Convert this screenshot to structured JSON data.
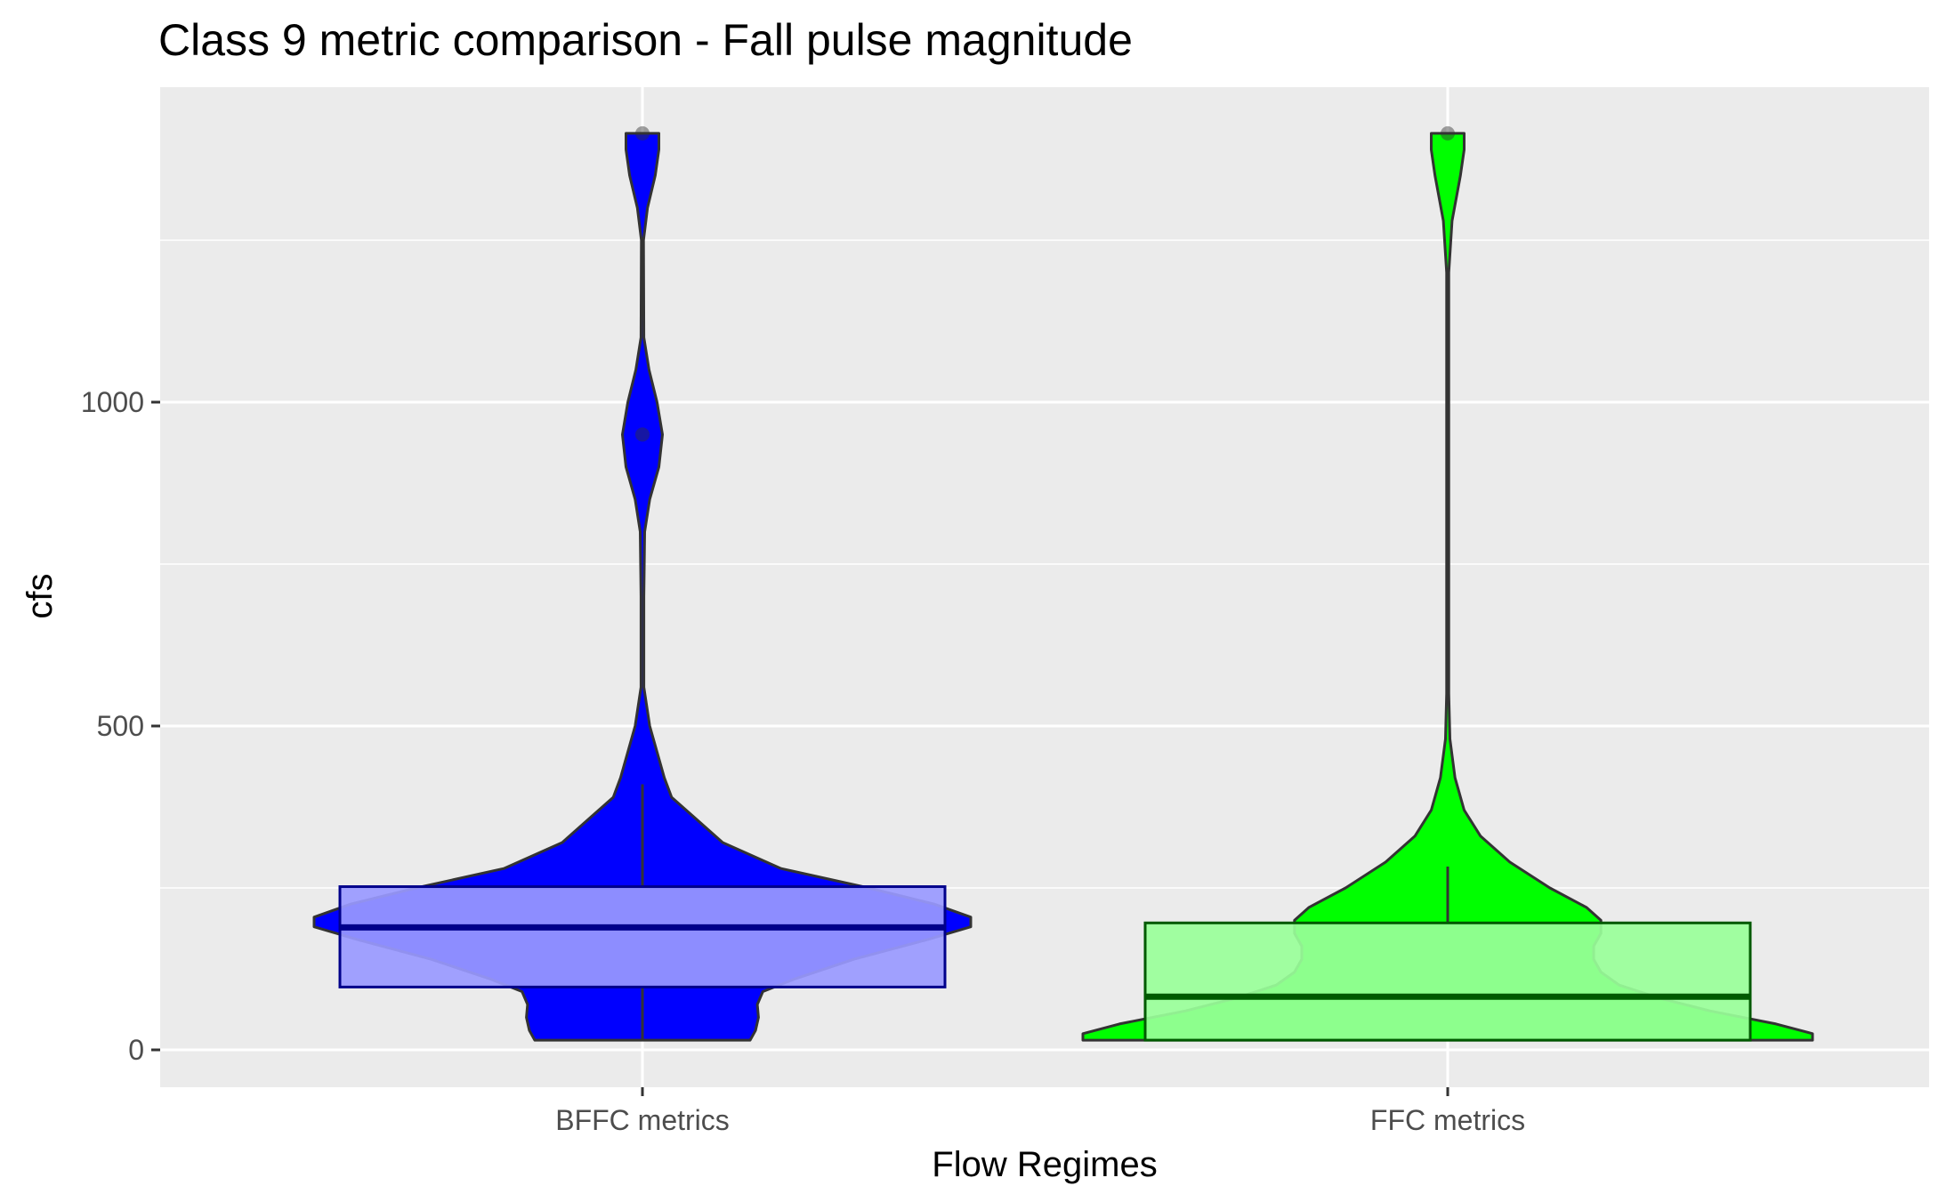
{
  "chart_data": {
    "type": "violin",
    "title": "Class 9 metric comparison - Fall pulse magnitude",
    "xlabel": "Flow Regimes",
    "ylabel": "cfs",
    "ylim": [
      -60,
      1480
    ],
    "yticks": [
      0,
      500,
      1000
    ],
    "grid": true,
    "legend": "none",
    "categories": [
      "BFFC metrics",
      "FFC metrics"
    ],
    "series": [
      {
        "category": "BFFC metrics",
        "fill_color": "#0000ff",
        "box_fill": "#9999ff",
        "box_border": "#00008b",
        "box": {
          "min": 15,
          "q1": 97,
          "median": 189,
          "q3": 252,
          "max": 410
        },
        "outliers": [
          950,
          1415
        ],
        "violin": [
          [
            15,
            0.295
          ],
          [
            30,
            0.31
          ],
          [
            50,
            0.318
          ],
          [
            70,
            0.315
          ],
          [
            90,
            0.33
          ],
          [
            110,
            0.42
          ],
          [
            140,
            0.58
          ],
          [
            170,
            0.78
          ],
          [
            190,
            0.9
          ],
          [
            205,
            0.9
          ],
          [
            225,
            0.8
          ],
          [
            250,
            0.62
          ],
          [
            280,
            0.38
          ],
          [
            320,
            0.22
          ],
          [
            360,
            0.14
          ],
          [
            390,
            0.08
          ],
          [
            420,
            0.06
          ],
          [
            460,
            0.04
          ],
          [
            500,
            0.02
          ],
          [
            560,
            0.004
          ],
          [
            700,
            0.004
          ],
          [
            800,
            0.006
          ],
          [
            850,
            0.02
          ],
          [
            900,
            0.045
          ],
          [
            950,
            0.055
          ],
          [
            1000,
            0.04
          ],
          [
            1050,
            0.018
          ],
          [
            1100,
            0.004
          ],
          [
            1250,
            0.003
          ],
          [
            1300,
            0.014
          ],
          [
            1350,
            0.035
          ],
          [
            1390,
            0.045
          ],
          [
            1415,
            0.045
          ]
        ]
      },
      {
        "category": "FFC metrics",
        "fill_color": "#00ff00",
        "box_fill": "#99ff99",
        "box_border": "#005a00",
        "box": {
          "min": 15,
          "q1": 15,
          "median": 82,
          "q3": 196,
          "max": 283
        },
        "outliers": [
          1415
        ],
        "violin": [
          [
            15,
            1.0
          ],
          [
            25,
            1.0
          ],
          [
            40,
            0.9
          ],
          [
            60,
            0.72
          ],
          [
            80,
            0.58
          ],
          [
            100,
            0.47
          ],
          [
            120,
            0.42
          ],
          [
            140,
            0.4
          ],
          [
            160,
            0.4
          ],
          [
            180,
            0.42
          ],
          [
            200,
            0.42
          ],
          [
            220,
            0.38
          ],
          [
            250,
            0.28
          ],
          [
            290,
            0.17
          ],
          [
            330,
            0.09
          ],
          [
            370,
            0.045
          ],
          [
            420,
            0.02
          ],
          [
            480,
            0.006
          ],
          [
            550,
            0.003
          ],
          [
            1200,
            0.003
          ],
          [
            1280,
            0.012
          ],
          [
            1350,
            0.035
          ],
          [
            1390,
            0.045
          ],
          [
            1415,
            0.045
          ]
        ]
      }
    ]
  }
}
